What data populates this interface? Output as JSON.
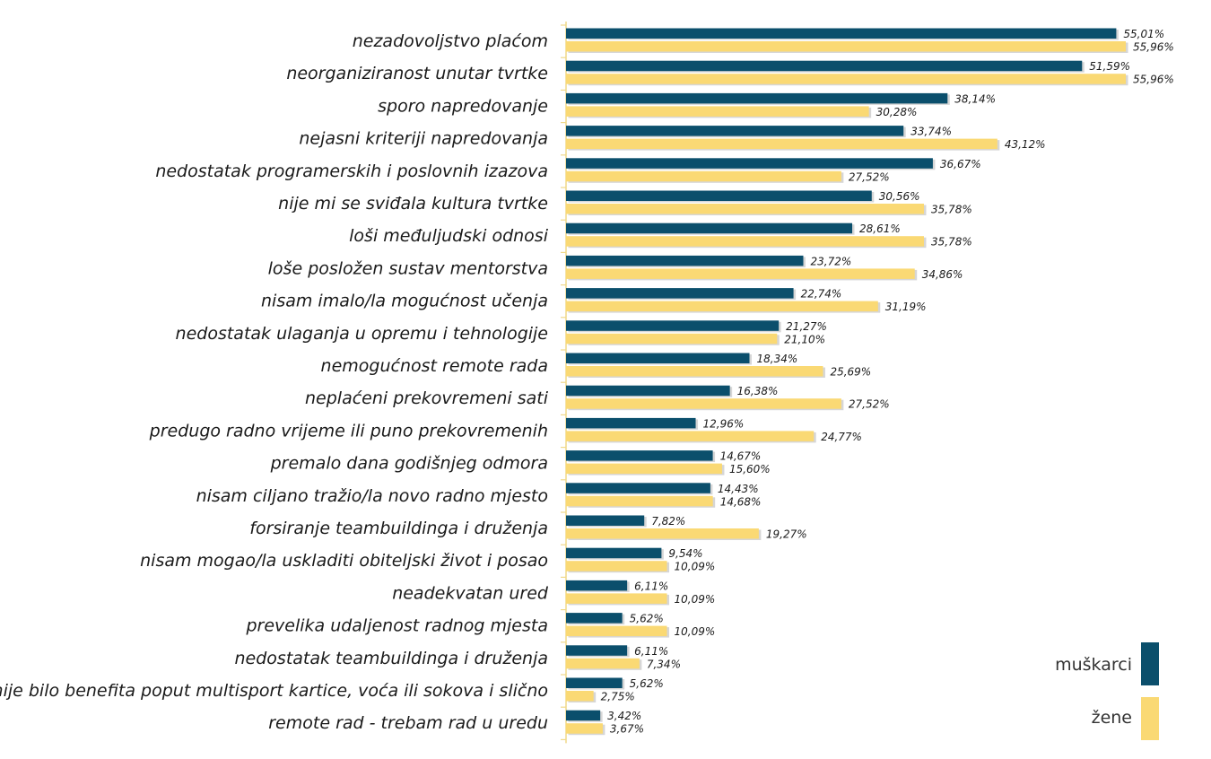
{
  "colors": {
    "muskarci": "#0b4f6c",
    "zene": "#fad974",
    "axis": "#f0d98a"
  },
  "chart_data": {
    "type": "bar",
    "orientation": "horizontal",
    "categories": [
      "nezadovoljstvo plaćom",
      "neorganiziranost unutar tvrtke",
      "sporo napredovanje",
      "nejasni kriteriji napredovanja",
      "nedostatak programerskih i poslovnih izazova",
      "nije mi se sviđala kultura tvrtke",
      "loši međuljudski odnosi",
      "loše posložen sustav mentorstva",
      "nisam imalo/la mogućnost učenja",
      "nedostatak ulaganja u opremu i tehnologije",
      "nemogućnost remote rada",
      "neplaćeni prekovremeni sati",
      "predugo radno vrijeme ili puno prekovremenih",
      "premalo dana godišnjeg odmora",
      "nisam ciljano tražio/la novo radno mjesto",
      "forsiranje teambuildinga i druženja",
      "nisam mogao/la uskladiti obiteljski život i posao",
      "neadekvatan ured",
      "prevelika udaljenost radnog mjesta",
      "nedostatak teambuildinga i druženja",
      "nije bilo benefita poput multisport kartice, voća ili sokova i slično",
      "remote rad - trebam rad u uredu"
    ],
    "series": [
      {
        "name": "muškarci",
        "values": [
          55.01,
          51.59,
          38.14,
          33.74,
          36.67,
          30.56,
          28.61,
          23.72,
          22.74,
          21.27,
          18.34,
          16.38,
          12.96,
          14.67,
          14.43,
          7.82,
          9.54,
          6.11,
          5.62,
          6.11,
          5.62,
          3.42
        ],
        "labels": [
          "55,01%",
          "51,59%",
          "38,14%",
          "33,74%",
          "36,67%",
          "30,56%",
          "28,61%",
          "23,72%",
          "22,74%",
          "21,27%",
          "18,34%",
          "16,38%",
          "12,96%",
          "14,67%",
          "14,43%",
          "7,82%",
          "9,54%",
          "6,11%",
          "5,62%",
          "6,11%",
          "5,62%",
          "3,42%"
        ]
      },
      {
        "name": "žene",
        "values": [
          55.96,
          55.96,
          30.28,
          43.12,
          27.52,
          35.78,
          35.78,
          34.86,
          31.19,
          21.1,
          25.69,
          27.52,
          24.77,
          15.6,
          14.68,
          19.27,
          10.09,
          10.09,
          10.09,
          7.34,
          2.75,
          3.67
        ],
        "labels": [
          "55,96%",
          "55,96%",
          "30,28%",
          "43,12%",
          "27,52%",
          "35,78%",
          "35,78%",
          "34,86%",
          "31,19%",
          "21,10%",
          "25,69%",
          "27,52%",
          "24,77%",
          "15,60%",
          "14,68%",
          "19,27%",
          "10,09%",
          "10,09%",
          "10,09%",
          "7,34%",
          "2,75%",
          "3,67%"
        ]
      }
    ],
    "xlim": [
      0,
      56
    ],
    "grid": false,
    "legend_position": "bottom-right"
  }
}
